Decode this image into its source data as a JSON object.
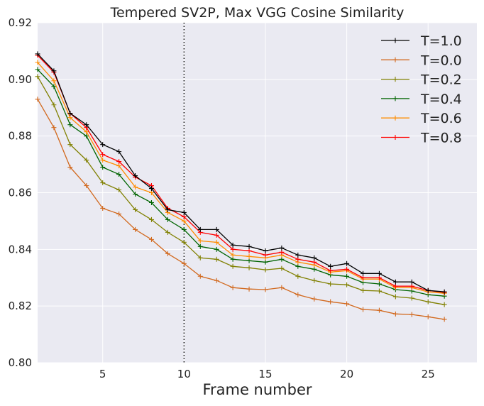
{
  "chart_data": {
    "type": "line",
    "title": "Tempered SV2P, Max VGG Cosine Similarity",
    "xlabel": "Frame number",
    "ylabel": "",
    "xlim": [
      1,
      28
    ],
    "ylim": [
      0.8,
      0.92
    ],
    "xticks": [
      5,
      10,
      15,
      20,
      25
    ],
    "yticks": [
      0.8,
      0.82,
      0.84,
      0.86,
      0.88,
      0.9,
      0.92
    ],
    "grid": true,
    "legend_position": "top-right",
    "vline": {
      "x": 10,
      "style": "dotted"
    },
    "x": [
      1,
      2,
      3,
      4,
      5,
      6,
      7,
      8,
      9,
      10,
      11,
      12,
      13,
      14,
      15,
      16,
      17,
      18,
      19,
      20,
      21,
      22,
      23,
      24,
      25,
      26
    ],
    "series": [
      {
        "name": "T=1.0",
        "color": "#000000",
        "values": [
          0.909,
          0.903,
          0.888,
          0.884,
          0.877,
          0.8745,
          0.866,
          0.8615,
          0.854,
          0.853,
          0.847,
          0.847,
          0.8415,
          0.841,
          0.8395,
          0.8405,
          0.838,
          0.837,
          0.834,
          0.835,
          0.8315,
          0.8315,
          0.8285,
          0.8285,
          0.8255,
          0.825
        ]
      },
      {
        "name": "T=0.0",
        "color": "#d2691e",
        "values": [
          0.893,
          0.883,
          0.869,
          0.8625,
          0.8545,
          0.8525,
          0.847,
          0.8435,
          0.8385,
          0.835,
          0.8305,
          0.829,
          0.8265,
          0.826,
          0.8258,
          0.8265,
          0.824,
          0.8225,
          0.8215,
          0.8208,
          0.8188,
          0.8185,
          0.8172,
          0.817,
          0.8162,
          0.8153
        ]
      },
      {
        "name": "T=0.2",
        "color": "#808000",
        "values": [
          0.901,
          0.891,
          0.877,
          0.8715,
          0.8635,
          0.861,
          0.854,
          0.8505,
          0.846,
          0.8425,
          0.837,
          0.8365,
          0.834,
          0.8335,
          0.8328,
          0.8333,
          0.8305,
          0.829,
          0.8278,
          0.8275,
          0.8255,
          0.8253,
          0.8233,
          0.8228,
          0.8215,
          0.8205
        ]
      },
      {
        "name": "T=0.4",
        "color": "#006400",
        "values": [
          0.9035,
          0.8975,
          0.884,
          0.88,
          0.869,
          0.8665,
          0.8595,
          0.8565,
          0.8505,
          0.847,
          0.841,
          0.84,
          0.8365,
          0.836,
          0.8355,
          0.8365,
          0.834,
          0.833,
          0.831,
          0.8305,
          0.8283,
          0.8278,
          0.8258,
          0.8253,
          0.824,
          0.8235
        ]
      },
      {
        "name": "T=0.6",
        "color": "#ff8c00",
        "values": [
          0.906,
          0.8995,
          0.8865,
          0.8815,
          0.8715,
          0.8695,
          0.862,
          0.86,
          0.853,
          0.85,
          0.843,
          0.8425,
          0.838,
          0.8375,
          0.837,
          0.838,
          0.8355,
          0.8345,
          0.832,
          0.8325,
          0.8295,
          0.8295,
          0.8265,
          0.8265,
          0.825,
          0.8245
        ]
      },
      {
        "name": "T=0.8",
        "color": "#ff0000",
        "values": [
          0.9085,
          0.9025,
          0.888,
          0.883,
          0.8735,
          0.871,
          0.8655,
          0.8625,
          0.8545,
          0.8515,
          0.846,
          0.845,
          0.84,
          0.8395,
          0.838,
          0.839,
          0.8365,
          0.8355,
          0.8325,
          0.833,
          0.83,
          0.83,
          0.827,
          0.827,
          0.8255,
          0.8248
        ]
      }
    ]
  }
}
